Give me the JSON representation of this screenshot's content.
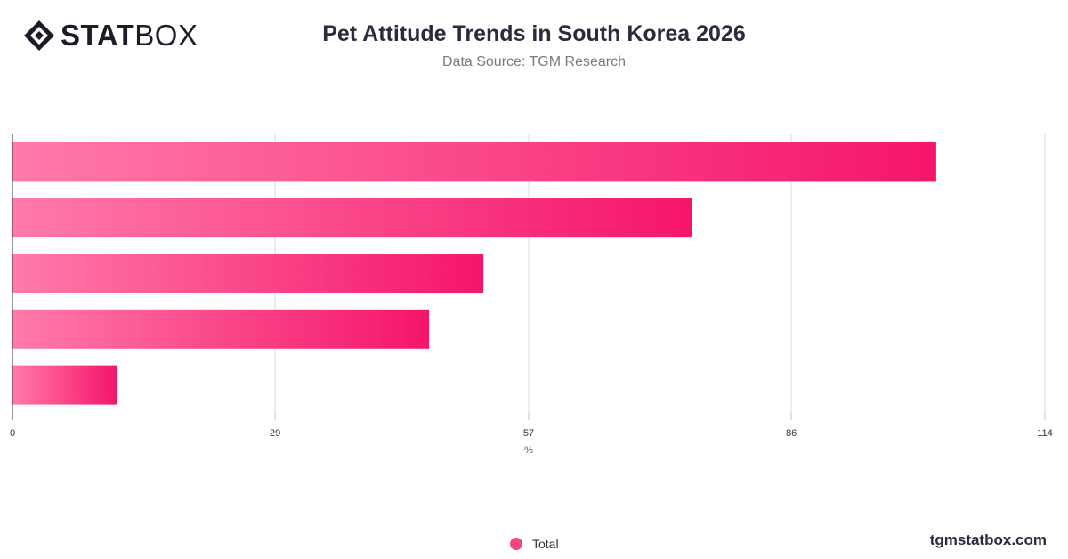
{
  "brand": {
    "logo_bold": "STAT",
    "logo_light": "BOX",
    "watermark": "tgmstatbox.com"
  },
  "header": {
    "title": "Pet Attitude Trends in South Korea 2026",
    "subtitle": "Data Source: TGM Research"
  },
  "chart_data": {
    "type": "bar",
    "orientation": "horizontal",
    "title": "Pet Attitude Trends in South Korea 2026",
    "subtitle": "Data Source: TGM Research",
    "categories": [
      "",
      "",
      "",
      "",
      ""
    ],
    "series": [
      {
        "name": "Total",
        "values": [
          102,
          75,
          52,
          46,
          11.5
        ]
      }
    ],
    "x_ticks": [
      0,
      29,
      57,
      86,
      114
    ],
    "xlabel": "%",
    "xlim": [
      0,
      114
    ],
    "grid": true,
    "legend_position": "bottom-center",
    "bar_gradient": [
      "#ff7aaa",
      "#f5156a"
    ]
  },
  "legend": {
    "label": "Total",
    "color": "#f0487f"
  }
}
